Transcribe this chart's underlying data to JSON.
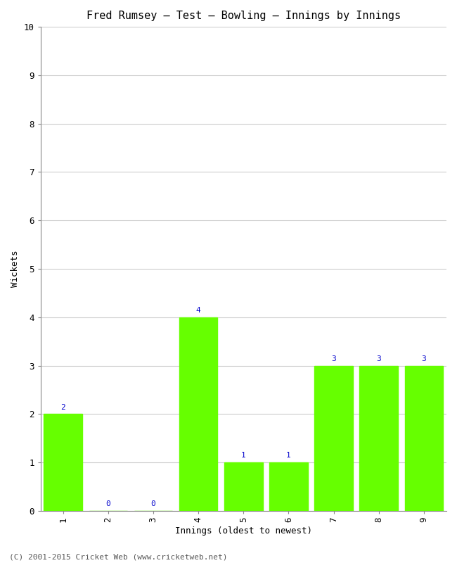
{
  "title": "Fred Rumsey – Test – Bowling – Innings by Innings",
  "xlabel": "Innings (oldest to newest)",
  "ylabel": "Wickets",
  "categories": [
    "1",
    "2",
    "3",
    "4",
    "5",
    "6",
    "7",
    "8",
    "9"
  ],
  "values": [
    2,
    0,
    0,
    4,
    1,
    1,
    3,
    3,
    3
  ],
  "bar_color": "#66ff00",
  "bar_edge_color": "#66ff00",
  "ylim": [
    0,
    10
  ],
  "yticks": [
    0,
    1,
    2,
    3,
    4,
    5,
    6,
    7,
    8,
    9,
    10
  ],
  "label_color": "#0000cc",
  "label_fontsize": 8,
  "title_fontsize": 11,
  "axis_label_fontsize": 9,
  "tick_fontsize": 9,
  "background_color": "#ffffff",
  "grid_color": "#cccccc",
  "footer_text": "(C) 2001-2015 Cricket Web (www.cricketweb.net)",
  "footer_fontsize": 8,
  "footer_color": "#555555",
  "spine_color": "#888888"
}
